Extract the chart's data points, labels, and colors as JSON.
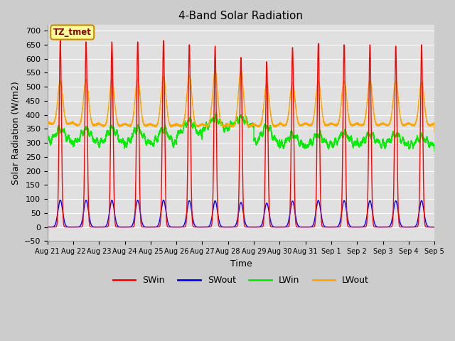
{
  "title": "4-Band Solar Radiation",
  "xlabel": "Time",
  "ylabel": "Solar Radiation (W/m2)",
  "ylim": [
    -50,
    720
  ],
  "background_color": "#cccccc",
  "plot_bg_color": "#e0e0e0",
  "grid_color": "#ffffff",
  "annotation_label": "TZ_tmet",
  "annotation_box_color": "#ffff99",
  "annotation_border_color": "#cc8800",
  "series": {
    "SWin": {
      "color": "#ff0000",
      "lw": 1.0
    },
    "SWout": {
      "color": "#0000ff",
      "lw": 1.0
    },
    "LWin": {
      "color": "#00ee00",
      "lw": 1.0
    },
    "LWout": {
      "color": "#ffa500",
      "lw": 1.0
    }
  },
  "n_days": 15,
  "start_day": 21,
  "points_per_day": 480,
  "SWin_peaks": [
    665,
    660,
    660,
    660,
    665,
    650,
    645,
    605,
    590,
    640,
    655,
    650,
    650,
    645,
    650
  ],
  "LWout_peaks": [
    520,
    525,
    525,
    530,
    535,
    540,
    555,
    555,
    510,
    515,
    520,
    520,
    520,
    520,
    515
  ],
  "LWout_base": [
    375,
    370,
    368,
    368,
    367,
    367,
    367,
    367,
    367,
    370,
    370,
    370,
    370,
    370,
    370
  ],
  "LWout_trough": [
    360,
    355,
    355,
    355,
    355,
    355,
    355,
    355,
    355,
    358,
    358,
    358,
    358,
    358,
    358
  ],
  "LWin_base": [
    305,
    300,
    298,
    297,
    296,
    330,
    350,
    360,
    300,
    290,
    290,
    295,
    295,
    295,
    290
  ],
  "LWin_amp": [
    45,
    50,
    55,
    55,
    55,
    50,
    40,
    30,
    60,
    40,
    40,
    40,
    35,
    35,
    30
  ]
}
